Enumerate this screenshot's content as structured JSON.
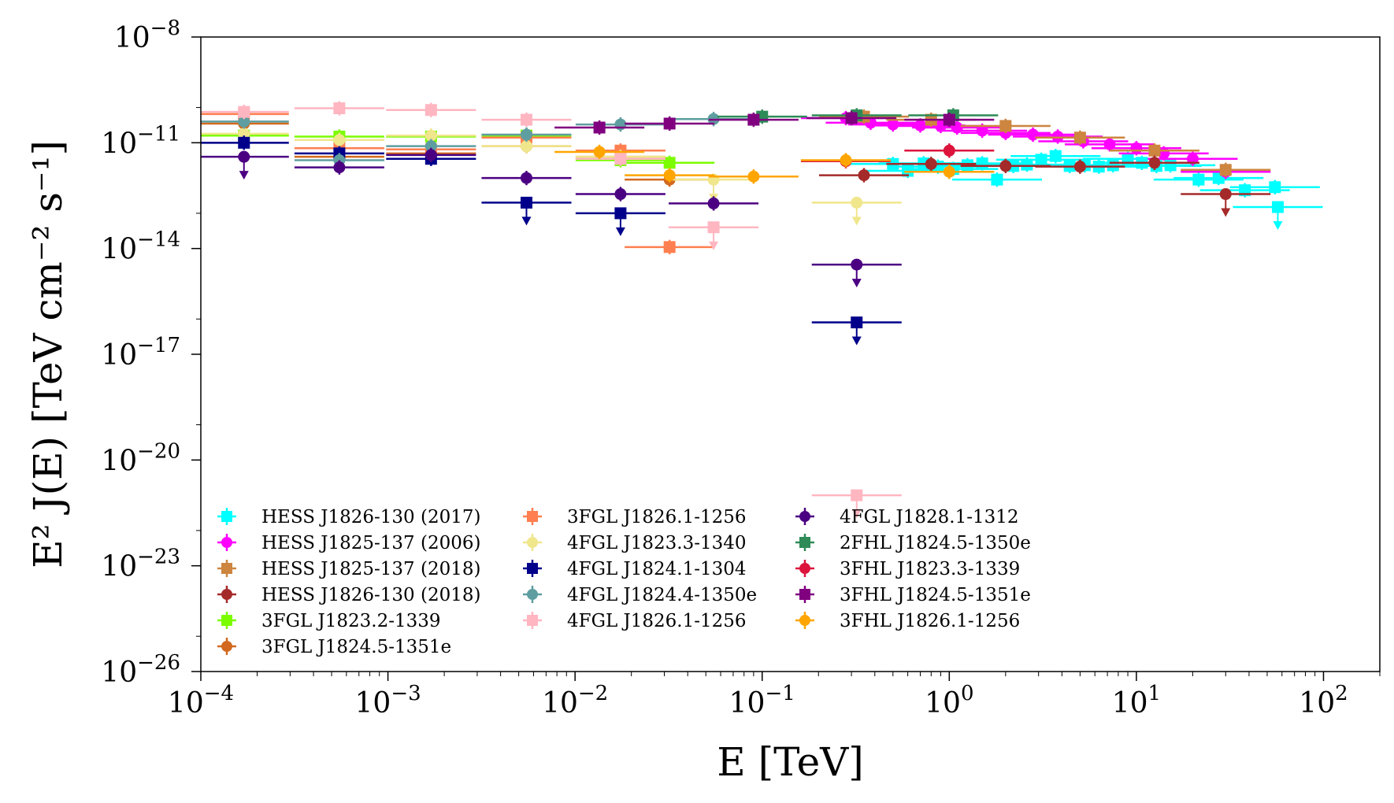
{
  "chart_data": {
    "type": "scatter",
    "xlabel": "E [TeV]",
    "ylabel": "E² J(E) [TeV cm⁻² s⁻¹]",
    "xscale": "log",
    "yscale": "log",
    "xlim": [
      0.0001,
      200
    ],
    "ylim": [
      1e-26,
      1e-08
    ],
    "x_ticks": [
      {
        "value": 0.0001,
        "base": "10",
        "exp": "−4"
      },
      {
        "value": 0.001,
        "base": "10",
        "exp": "−3"
      },
      {
        "value": 0.01,
        "base": "10",
        "exp": "−2"
      },
      {
        "value": 0.1,
        "base": "10",
        "exp": "−1"
      },
      {
        "value": 1,
        "base": "10",
        "exp": "0"
      },
      {
        "value": 10,
        "base": "10",
        "exp": "1"
      },
      {
        "value": 100,
        "base": "10",
        "exp": "2"
      }
    ],
    "y_ticks": [
      {
        "value": 1e-08,
        "base": "10",
        "exp": "−8"
      },
      {
        "value": 1e-11,
        "base": "10",
        "exp": "−11"
      },
      {
        "value": 1e-14,
        "base": "10",
        "exp": "−14"
      },
      {
        "value": 1e-17,
        "base": "10",
        "exp": "−17"
      },
      {
        "value": 1e-20,
        "base": "10",
        "exp": "−20"
      },
      {
        "value": 1e-23,
        "base": "10",
        "exp": "−23"
      },
      {
        "value": 1e-26,
        "base": "10",
        "exp": "−26"
      }
    ],
    "legend_position": "lower-left",
    "legend_columns": 3,
    "grid": false,
    "series": [
      {
        "name": "HESS J1826-130 (2017)",
        "color": "#00ffff",
        "marker": "square",
        "points": [
          [
            0.5,
            2.5e-12
          ],
          [
            0.6,
            1.6e-12
          ],
          [
            0.73,
            2.6e-12
          ],
          [
            0.87,
            2.1e-12
          ],
          [
            1.05,
            1.8e-12
          ],
          [
            1.25,
            2.3e-12
          ],
          [
            1.5,
            2.6e-12
          ],
          [
            1.8,
            9e-13
          ],
          [
            2.2,
            2.2e-12
          ],
          [
            2.6,
            2.4e-12
          ],
          [
            3.1,
            3.3e-12
          ],
          [
            3.7,
            4.2e-12
          ],
          [
            4.4,
            2.2e-12
          ],
          [
            5.3,
            2.3e-12
          ],
          [
            6.3,
            2.1e-12
          ],
          [
            7.5,
            2.3e-12
          ],
          [
            9,
            3.5e-12
          ],
          [
            10.7,
            2.7e-12
          ],
          [
            12.8,
            2.2e-12
          ],
          [
            15.2,
            2.3e-12
          ],
          [
            21.5,
            9e-13
          ],
          [
            27.5,
            1e-12
          ],
          [
            38,
            4.5e-13
          ],
          [
            55,
            5.5e-13
          ]
        ],
        "upper_limits": [
          [
            57,
            1.5e-13
          ]
        ]
      },
      {
        "name": "HESS J1825-137 (2006)",
        "color": "#ff00ff",
        "marker": "circle",
        "points": [
          [
            0.28,
            5e-11
          ],
          [
            0.38,
            3.7e-11
          ],
          [
            0.5,
            3.3e-11
          ],
          [
            0.7,
            3.1e-11
          ],
          [
            0.9,
            3e-11
          ],
          [
            1.1,
            2.7e-11
          ],
          [
            1.5,
            2.2e-11
          ],
          [
            2,
            1.9e-11
          ],
          [
            2.8,
            1.7e-11
          ],
          [
            3.8,
            1.5e-11
          ],
          [
            5.2,
            1.1e-11
          ],
          [
            7.2,
            9e-12
          ],
          [
            10,
            7e-12
          ],
          [
            14,
            5e-12
          ],
          [
            20,
            3.5e-12
          ],
          [
            30,
            1.5e-12
          ]
        ],
        "upper_limits": []
      },
      {
        "name": "HESS J1825-137 (2018)",
        "color": "#cd853f",
        "marker": "square",
        "points": [
          [
            0.35,
            5.5e-11
          ],
          [
            0.8,
            4.5e-11
          ],
          [
            2,
            3e-11
          ],
          [
            5,
            1.4e-11
          ],
          [
            12.5,
            6e-12
          ],
          [
            30,
            1.7e-12
          ]
        ],
        "upper_limits": []
      },
      {
        "name": "HESS J1826-130 (2018)",
        "color": "#a52a2a",
        "marker": "circle",
        "points": [
          [
            0.35,
            1.2e-12
          ],
          [
            0.8,
            2.5e-12
          ],
          [
            2,
            2.2e-12
          ],
          [
            5,
            2.1e-12
          ],
          [
            12.5,
            2.7e-12
          ]
        ],
        "upper_limits": [
          [
            30,
            3.5e-13
          ]
        ]
      },
      {
        "name": "3FGL J1823.2-1339",
        "color": "#7cfc00",
        "marker": "square",
        "points": [
          [
            0.00017,
            1.6e-11
          ],
          [
            0.00055,
            1.5e-11
          ],
          [
            0.0017,
            1.5e-11
          ],
          [
            0.0055,
            1.6e-11
          ],
          [
            0.0175,
            3.2e-12
          ],
          [
            0.032,
            2.7e-12
          ]
        ],
        "upper_limits": []
      },
      {
        "name": "3FGL J1824.5-1351e",
        "color": "#d2691e",
        "marker": "circle",
        "points": [
          [
            0.00017,
            3.5e-11
          ],
          [
            0.00055,
            4e-12
          ],
          [
            0.0017,
            5e-12
          ],
          [
            0.0055,
            8e-12
          ],
          [
            0.0175,
            4e-12
          ],
          [
            0.032,
            9e-13
          ]
        ],
        "upper_limits": []
      },
      {
        "name": "3FGL J1826.1-1256",
        "color": "#ff7f50",
        "marker": "square",
        "points": [
          [
            0.00017,
            6.5e-11
          ],
          [
            0.00055,
            7e-12
          ],
          [
            0.0017,
            6.5e-12
          ],
          [
            0.0055,
            1.4e-11
          ],
          [
            0.0175,
            6e-12
          ],
          [
            0.032,
            1.1e-14
          ]
        ],
        "upper_limits": []
      },
      {
        "name": "4FGL J1823.3-1340",
        "color": "#f0e68c",
        "marker": "circle",
        "points": [
          [
            0.00017,
            1.8e-11
          ],
          [
            0.00055,
            1.2e-11
          ],
          [
            0.0017,
            1.6e-11
          ],
          [
            0.0055,
            8e-12
          ],
          [
            0.0175,
            4e-12
          ]
        ],
        "upper_limits": [
          [
            0.055,
            9e-13
          ],
          [
            0.32,
            2e-13
          ]
        ]
      },
      {
        "name": "4FGL J1824.1-1304",
        "color": "#00008b",
        "marker": "square",
        "points": [
          [
            0.00017,
            1e-11
          ],
          [
            0.00055,
            5e-12
          ],
          [
            0.0017,
            3.5e-12
          ]
        ],
        "upper_limits": [
          [
            0.0055,
            2e-13
          ],
          [
            0.0175,
            1e-13
          ],
          [
            0.32,
            8e-17
          ]
        ]
      },
      {
        "name": "4FGL J1824.4-1350e",
        "color": "#5f9ea0",
        "marker": "circle",
        "points": [
          [
            0.00017,
            4e-11
          ],
          [
            0.00055,
            3.2e-12
          ],
          [
            0.0017,
            8e-12
          ],
          [
            0.0055,
            1.7e-11
          ],
          [
            0.0175,
            3.3e-11
          ],
          [
            0.055,
            4.7e-11
          ]
        ],
        "upper_limits": []
      },
      {
        "name": "4FGL J1826.1-1256",
        "color": "#ffb6c1",
        "marker": "square",
        "points": [
          [
            0.00017,
            7.5e-11
          ],
          [
            0.00055,
            9.5e-11
          ],
          [
            0.0017,
            8.5e-11
          ],
          [
            0.0055,
            4.5e-11
          ],
          [
            0.0175,
            3.5e-12
          ]
        ],
        "upper_limits": [
          [
            0.055,
            4e-14
          ],
          [
            0.32,
            1e-21
          ]
        ]
      },
      {
        "name": "4FGL J1828.1-1312",
        "color": "#4b0082",
        "marker": "circle",
        "points": [
          [
            0.00055,
            2e-12
          ],
          [
            0.0017,
            4.5e-12
          ],
          [
            0.0055,
            1e-12
          ],
          [
            0.0175,
            3.5e-13
          ],
          [
            0.055,
            1.9e-13
          ]
        ],
        "upper_limits": [
          [
            0.00017,
            4e-12
          ],
          [
            0.32,
            3.5e-15
          ]
        ]
      },
      {
        "name": "2FHL J1824.5-1350e",
        "color": "#2e8b57",
        "marker": "square",
        "points": [
          [
            0.1,
            5.5e-11
          ],
          [
            0.32,
            6e-11
          ],
          [
            1.05,
            6e-11
          ]
        ],
        "upper_limits": []
      },
      {
        "name": "3FHL J1823.3-1339",
        "color": "#dc143c",
        "marker": "circle",
        "points": [
          [
            0.28,
            3e-12
          ],
          [
            1,
            6e-12
          ]
        ],
        "upper_limits": []
      },
      {
        "name": "3FHL J1824.5-1351e",
        "color": "#800080",
        "marker": "square",
        "points": [
          [
            0.0135,
            2.7e-11
          ],
          [
            0.032,
            3.5e-11
          ],
          [
            0.09,
            4.5e-11
          ],
          [
            0.3,
            5e-11
          ],
          [
            1,
            4.5e-11
          ]
        ],
        "upper_limits": []
      },
      {
        "name": "3FHL J1826.1-1256",
        "color": "#ffa500",
        "marker": "circle",
        "points": [
          [
            0.0135,
            5.5e-12
          ],
          [
            0.032,
            1.2e-12
          ],
          [
            0.09,
            1.1e-12
          ],
          [
            0.28,
            3.2e-12
          ],
          [
            1,
            1.5e-12
          ]
        ],
        "upper_limits": []
      }
    ]
  }
}
